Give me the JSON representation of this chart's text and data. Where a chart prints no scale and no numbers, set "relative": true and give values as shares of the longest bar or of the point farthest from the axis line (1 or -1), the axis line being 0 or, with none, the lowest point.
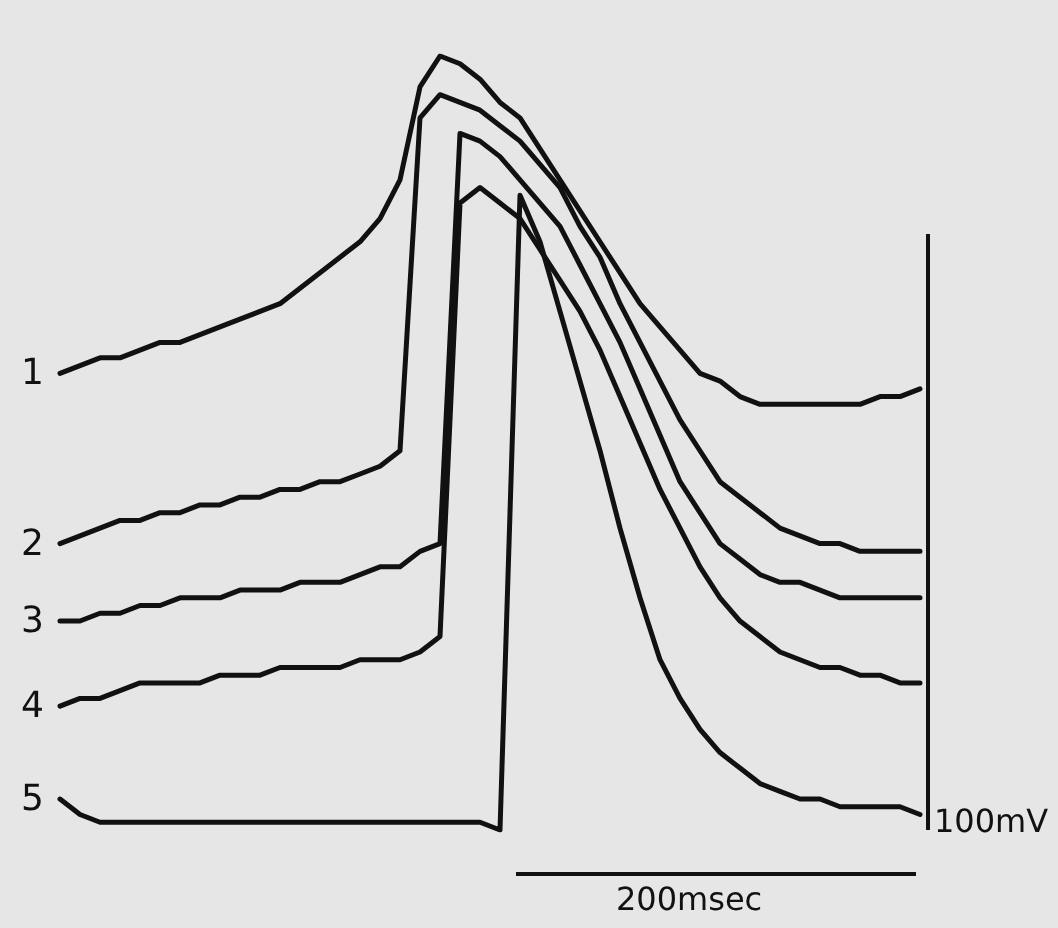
{
  "chart_data": {
    "type": "line",
    "relative": true,
    "categories": [
      null,
      null,
      null,
      null,
      null,
      null,
      null,
      null,
      null,
      null,
      null,
      null,
      null,
      null,
      null,
      null,
      null,
      null,
      null,
      null,
      null,
      null,
      null,
      null,
      null,
      null,
      null,
      null,
      null,
      null,
      null,
      null,
      null,
      null,
      null,
      null,
      null,
      null,
      null,
      null,
      null,
      null,
      null,
      null
    ],
    "series": [
      {
        "name": "1",
        "color": "#111111",
        "values": [
          0.59,
          0.6,
          0.61,
          0.61,
          0.62,
          0.63,
          0.63,
          0.64,
          0.65,
          0.66,
          0.67,
          0.68,
          0.7,
          0.72,
          0.74,
          0.76,
          0.79,
          0.84,
          0.96,
          1.0,
          0.99,
          0.97,
          0.94,
          0.92,
          0.88,
          0.84,
          0.8,
          0.76,
          0.72,
          0.68,
          0.65,
          0.62,
          0.59,
          0.58,
          0.56,
          0.55,
          0.55,
          0.55,
          0.55,
          0.55,
          0.55,
          0.56,
          0.56,
          0.57
        ]
      },
      {
        "name": "2",
        "color": "#111111",
        "values": [
          0.37,
          0.38,
          0.39,
          0.4,
          0.4,
          0.41,
          0.41,
          0.42,
          0.42,
          0.43,
          0.43,
          0.44,
          0.44,
          0.45,
          0.45,
          0.46,
          0.47,
          0.49,
          0.92,
          0.95,
          0.94,
          0.93,
          0.91,
          0.89,
          0.86,
          0.83,
          0.78,
          0.74,
          0.68,
          0.63,
          0.58,
          0.53,
          0.49,
          0.45,
          0.43,
          0.41,
          0.39,
          0.38,
          0.37,
          0.37,
          0.36,
          0.36,
          0.36,
          0.36
        ]
      },
      {
        "name": "3",
        "color": "#111111",
        "values": [
          0.27,
          0.27,
          0.28,
          0.28,
          0.29,
          0.29,
          0.3,
          0.3,
          0.3,
          0.31,
          0.31,
          0.31,
          0.32,
          0.32,
          0.32,
          0.33,
          0.34,
          0.34,
          0.36,
          0.37,
          0.9,
          0.89,
          0.87,
          0.84,
          0.81,
          0.78,
          0.73,
          0.68,
          0.63,
          0.57,
          0.51,
          0.45,
          0.41,
          0.37,
          0.35,
          0.33,
          0.32,
          0.32,
          0.31,
          0.3,
          0.3,
          0.3,
          0.3,
          0.3
        ]
      },
      {
        "name": "4",
        "color": "#111111",
        "values": [
          0.16,
          0.17,
          0.17,
          0.18,
          0.19,
          0.19,
          0.19,
          0.19,
          0.2,
          0.2,
          0.2,
          0.21,
          0.21,
          0.21,
          0.21,
          0.22,
          0.22,
          0.22,
          0.23,
          0.25,
          0.81,
          0.83,
          0.81,
          0.79,
          0.75,
          0.71,
          0.67,
          0.62,
          0.56,
          0.5,
          0.44,
          0.39,
          0.34,
          0.3,
          0.27,
          0.25,
          0.23,
          0.22,
          0.21,
          0.21,
          0.2,
          0.2,
          0.19,
          0.19
        ]
      },
      {
        "name": "5",
        "color": "#111111",
        "values": [
          0.04,
          0.02,
          0.01,
          0.01,
          0.01,
          0.01,
          0.01,
          0.01,
          0.01,
          0.01,
          0.01,
          0.01,
          0.01,
          0.01,
          0.01,
          0.01,
          0.01,
          0.01,
          0.01,
          0.01,
          0.01,
          0.01,
          0.0,
          0.82,
          0.76,
          0.67,
          0.58,
          0.49,
          0.39,
          0.3,
          0.22,
          0.17,
          0.13,
          0.1,
          0.08,
          0.06,
          0.05,
          0.04,
          0.04,
          0.03,
          0.03,
          0.03,
          0.03,
          0.02
        ]
      }
    ],
    "annotations": [
      "100mV",
      "200msec"
    ]
  }
}
